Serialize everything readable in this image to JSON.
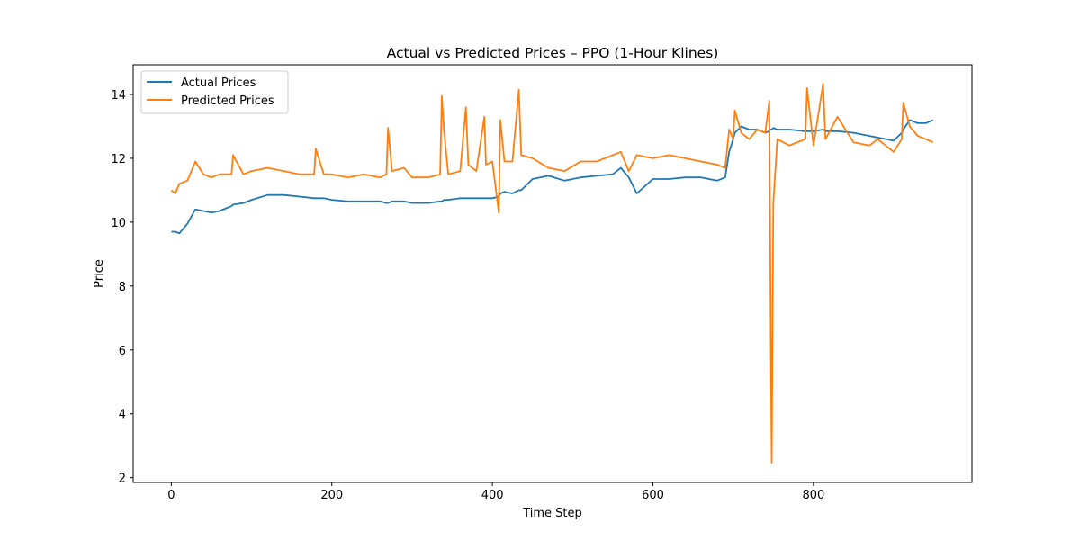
{
  "chart_data": {
    "type": "line",
    "title": "Actual vs Predicted Prices – PPO (1-Hour Klines)",
    "xlabel": "Time Step",
    "ylabel": "Price",
    "x": [
      0,
      5,
      10,
      20,
      30,
      40,
      50,
      60,
      75,
      77,
      90,
      100,
      120,
      140,
      160,
      178,
      180,
      190,
      200,
      220,
      240,
      260,
      268,
      270,
      275,
      290,
      300,
      320,
      335,
      337,
      340,
      345,
      360,
      367,
      370,
      380,
      390,
      392,
      400,
      408,
      410,
      415,
      425,
      433,
      436,
      450,
      470,
      490,
      510,
      530,
      550,
      560,
      570,
      580,
      600,
      620,
      640,
      660,
      680,
      690,
      695,
      700,
      702,
      710,
      720,
      730,
      740,
      745,
      746,
      747,
      748,
      750,
      755,
      770,
      790,
      792,
      800,
      812,
      815,
      830,
      850,
      870,
      880,
      900,
      910,
      912,
      920,
      930,
      940,
      949
    ],
    "series": [
      {
        "name": "Actual Prices",
        "color": "#1f77b4",
        "values": [
          9.7,
          9.7,
          9.65,
          9.95,
          10.4,
          10.35,
          10.3,
          10.35,
          10.5,
          10.55,
          10.6,
          10.7,
          10.85,
          10.85,
          10.8,
          10.75,
          10.75,
          10.75,
          10.7,
          10.65,
          10.65,
          10.65,
          10.6,
          10.6,
          10.65,
          10.65,
          10.6,
          10.6,
          10.65,
          10.65,
          10.7,
          10.7,
          10.75,
          10.75,
          10.75,
          10.75,
          10.75,
          10.75,
          10.75,
          10.8,
          10.9,
          10.95,
          10.9,
          11.0,
          11.0,
          11.35,
          11.45,
          11.3,
          11.4,
          11.45,
          11.5,
          11.7,
          11.4,
          10.9,
          11.35,
          11.35,
          11.4,
          11.4,
          11.3,
          11.4,
          12.2,
          12.6,
          12.8,
          13.0,
          12.9,
          12.9,
          12.8,
          12.85,
          12.9,
          12.9,
          12.9,
          12.95,
          12.9,
          12.9,
          12.85,
          12.85,
          12.85,
          12.9,
          12.85,
          12.85,
          12.8,
          12.7,
          12.65,
          12.55,
          12.8,
          12.9,
          13.2,
          13.1,
          13.1,
          13.2
        ]
      },
      {
        "name": "Predicted Prices",
        "color": "#ff7f0e",
        "values": [
          11.0,
          10.9,
          11.2,
          11.3,
          11.9,
          11.5,
          11.4,
          11.5,
          11.5,
          12.1,
          11.5,
          11.6,
          11.7,
          11.6,
          11.5,
          11.5,
          12.3,
          11.5,
          11.5,
          11.4,
          11.5,
          11.4,
          11.5,
          12.95,
          11.6,
          11.7,
          11.4,
          11.4,
          11.5,
          13.95,
          12.8,
          11.5,
          11.6,
          13.6,
          11.8,
          11.6,
          13.3,
          11.8,
          11.9,
          10.3,
          13.2,
          11.9,
          11.9,
          14.15,
          12.1,
          12.0,
          11.7,
          11.6,
          11.9,
          11.9,
          12.1,
          12.2,
          11.6,
          12.1,
          12.0,
          12.1,
          12.0,
          11.9,
          11.8,
          11.7,
          12.9,
          12.6,
          13.5,
          12.8,
          12.6,
          12.9,
          12.8,
          13.8,
          10.2,
          5.6,
          2.47,
          10.6,
          12.6,
          12.4,
          12.6,
          14.2,
          12.4,
          14.33,
          12.6,
          13.3,
          12.5,
          12.4,
          12.6,
          12.2,
          12.6,
          13.75,
          13.0,
          12.7,
          12.6,
          12.5
        ]
      }
    ],
    "xlim": [
      -47.5,
      997.5
    ],
    "xticks": [
      0,
      200,
      400,
      600,
      800
    ],
    "ylim": [
      1.85,
      14.93
    ],
    "yticks": [
      2,
      4,
      6,
      8,
      10,
      12,
      14
    ],
    "legend": "upper left"
  }
}
